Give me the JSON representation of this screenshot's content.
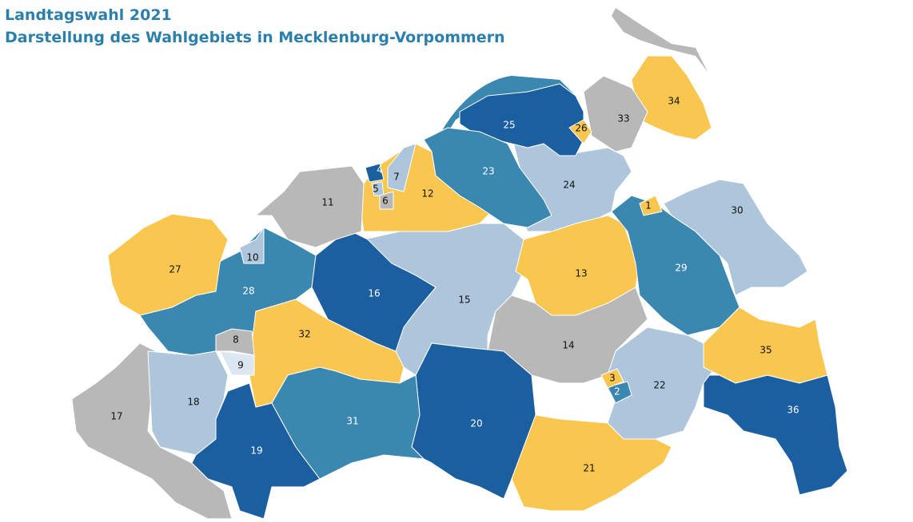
{
  "header": {
    "title": "Landtagswahl 2021",
    "subtitle": "Darstellung des Wahlgebiets in Mecklenburg-Vorpommern"
  },
  "regions": [
    {
      "label": 1,
      "color": "#f9c74f"
    },
    {
      "label": 2,
      "color": "#3a87b0"
    },
    {
      "label": 3,
      "color": "#f9c74f"
    },
    {
      "label": 4,
      "color": "#1c5fa0"
    },
    {
      "label": 5,
      "color": "#adc6dc"
    },
    {
      "label": 6,
      "color": "#b8b8b8"
    },
    {
      "label": 7,
      "color": "#adc6dc"
    },
    {
      "label": 8,
      "color": "#b8b8b8"
    },
    {
      "label": 9,
      "color": "#dde7f1"
    },
    {
      "label": 10,
      "color": "#adc6dc"
    },
    {
      "label": 11,
      "color": "#b8b8b8"
    },
    {
      "label": 12,
      "color": "#f9c74f"
    },
    {
      "label": 13,
      "color": "#f9c74f"
    },
    {
      "label": 14,
      "color": "#b8b8b8"
    },
    {
      "label": 15,
      "color": "#adc6dc"
    },
    {
      "label": 16,
      "color": "#1c5fa0"
    },
    {
      "label": 17,
      "color": "#b8b8b8"
    },
    {
      "label": 18,
      "color": "#adc6dc"
    },
    {
      "label": 19,
      "color": "#1c5fa0"
    },
    {
      "label": 20,
      "color": "#1c5fa0"
    },
    {
      "label": 21,
      "color": "#f9c74f"
    },
    {
      "label": 22,
      "color": "#adc6dc"
    },
    {
      "label": 23,
      "color": "#3a87b0"
    },
    {
      "label": 24,
      "color": "#adc6dc"
    },
    {
      "label": 25,
      "color": "#1c5fa0"
    },
    {
      "label": 26,
      "color": "#f9c74f"
    },
    {
      "label": 27,
      "color": "#f9c74f"
    },
    {
      "label": 28,
      "color": "#3a87b0"
    },
    {
      "label": 29,
      "color": "#3a87b0"
    },
    {
      "label": 30,
      "color": "#adc6dc"
    },
    {
      "label": 31,
      "color": "#3a87b0"
    },
    {
      "label": 32,
      "color": "#f9c74f"
    },
    {
      "label": 33,
      "color": "#b8b8b8"
    },
    {
      "label": 34,
      "color": "#f9c74f"
    },
    {
      "label": 35,
      "color": "#f9c74f"
    },
    {
      "label": 36,
      "color": "#1c5fa0"
    }
  ]
}
